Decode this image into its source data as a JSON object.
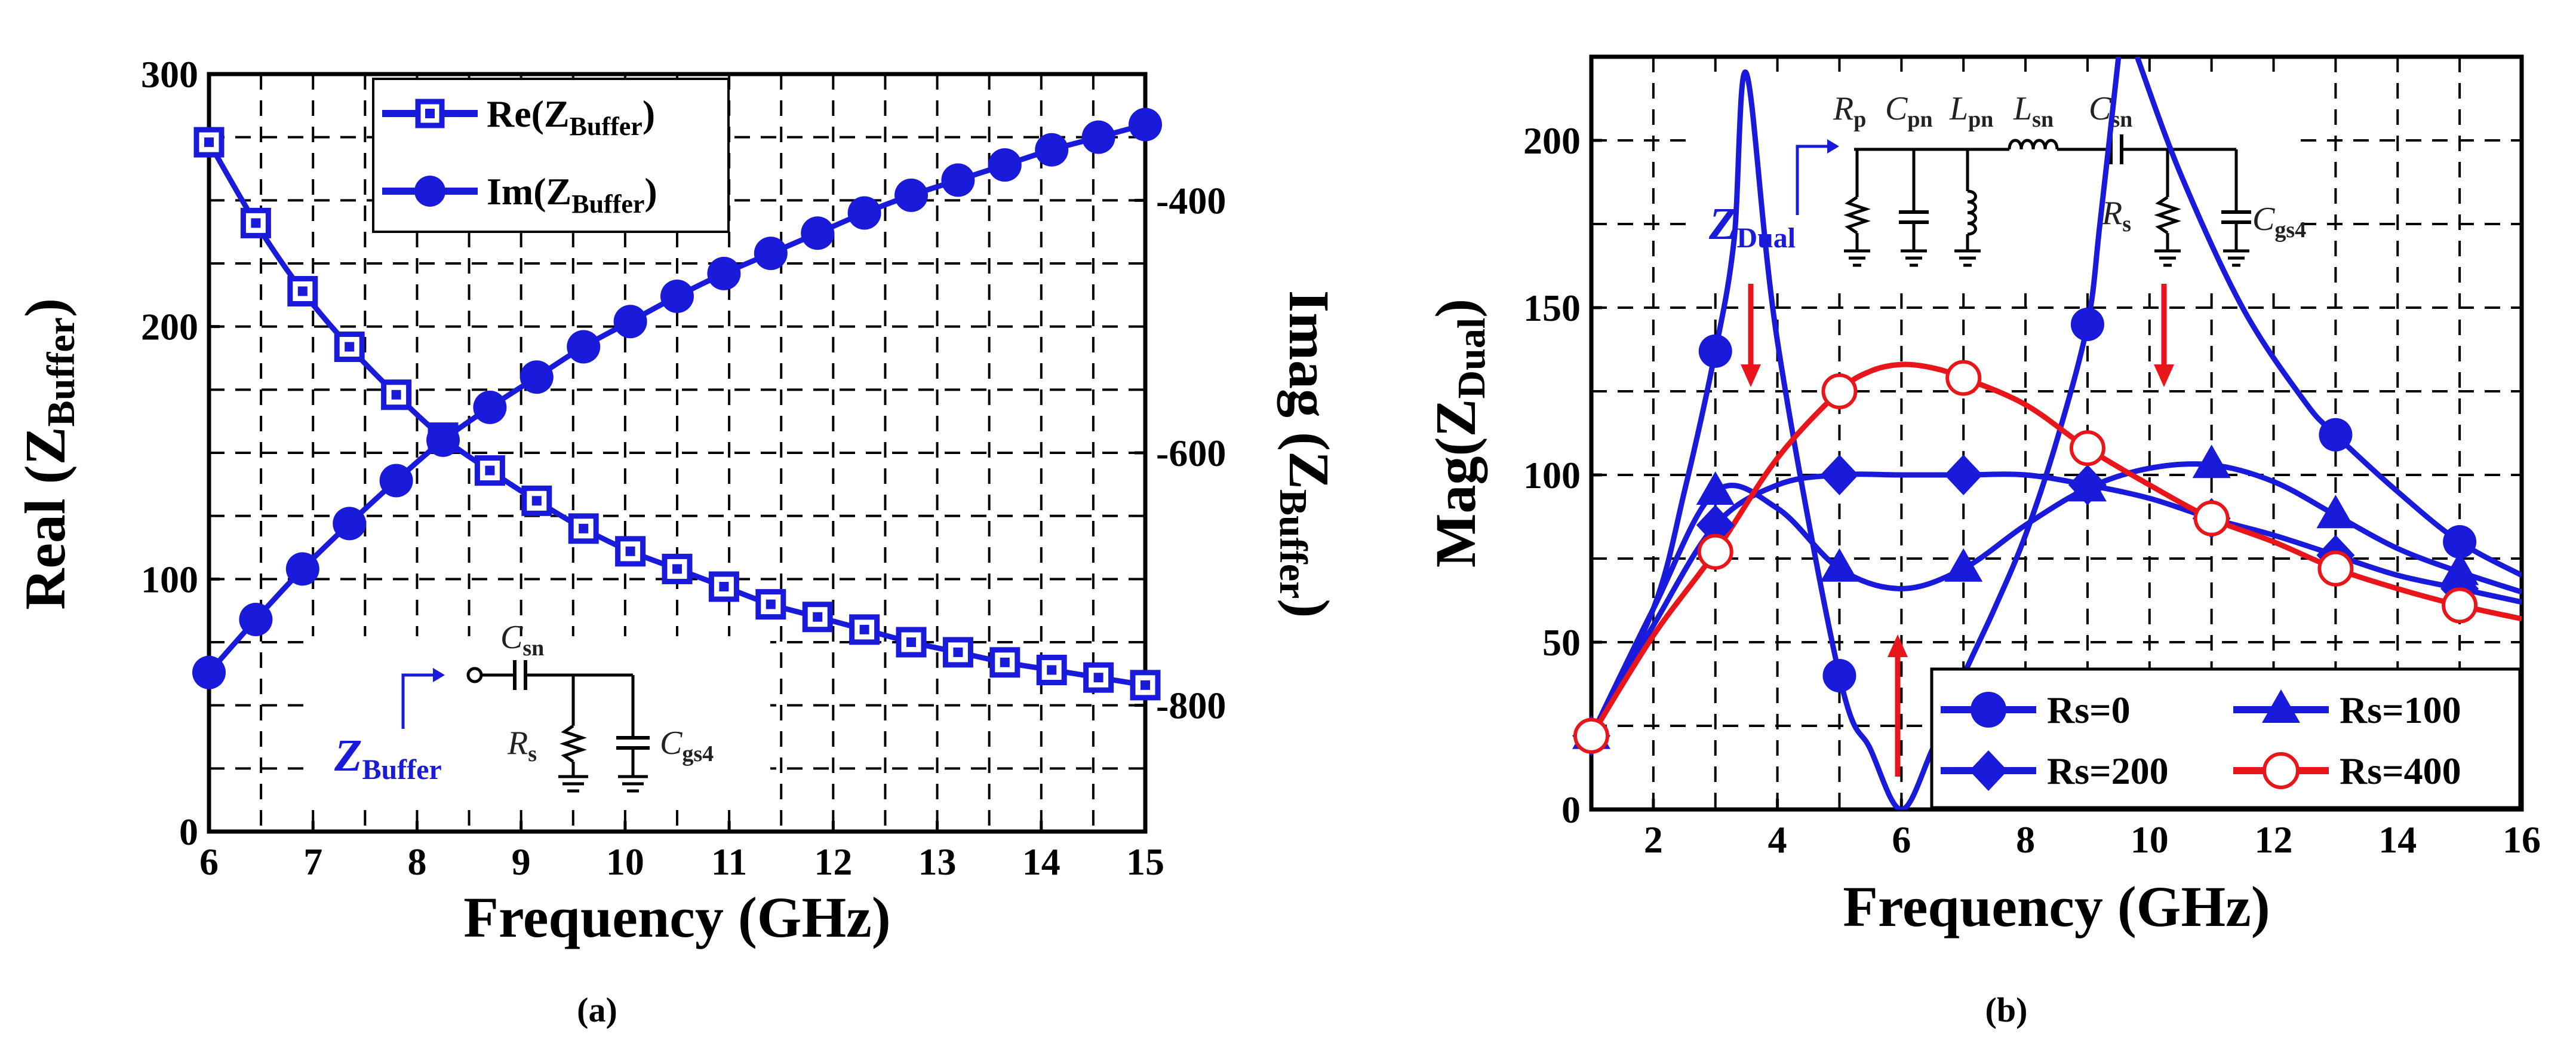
{
  "colors": {
    "blue": "#1a1adb",
    "red": "#e8151b",
    "grid": "#000000"
  },
  "chart_data": [
    {
      "type": "line",
      "panel": "(a)",
      "xlabel": "Frequency (GHz)",
      "ylabel_left": "Real (Z",
      "ylabel_left_sub": "Buffer",
      "ylabel_left_tail": ")",
      "ylabel_right": "Imag (Z",
      "ylabel_right_sub": "Buffer",
      "ylabel_right_tail": ")",
      "xlim": [
        6,
        15
      ],
      "ylim_left": [
        0,
        300
      ],
      "ylim_right": [
        -900,
        -300
      ],
      "xticks": [
        "6",
        "7",
        "8",
        "9",
        "10",
        "11",
        "12",
        "13",
        "14",
        "15"
      ],
      "yticks_left": [
        "0",
        "100",
        "200",
        "300"
      ],
      "yticks_right": [
        "-400",
        "-600",
        "-800"
      ],
      "legend": [
        {
          "name": "Re(Z",
          "sub": "Buffer",
          "tail": ")"
        },
        {
          "name": "Im(Z",
          "sub": "Buffer",
          "tail": ")"
        }
      ],
      "series": [
        {
          "name": "Re(ZBuffer)",
          "axis": "left",
          "marker": "square",
          "x": [
            6,
            6.45,
            6.9,
            7.35,
            7.8,
            8.25,
            8.7,
            9.15,
            9.6,
            10.05,
            10.5,
            10.95,
            11.4,
            11.85,
            12.3,
            12.75,
            13.2,
            13.65,
            14.1,
            14.55,
            15
          ],
          "values": [
            273,
            241,
            214,
            192,
            173,
            156,
            143,
            131,
            120,
            111,
            104,
            97,
            90,
            85,
            80,
            75,
            71,
            67,
            64,
            61,
            58
          ]
        },
        {
          "name": "Im(ZBuffer)",
          "axis": "left",
          "marker": "circle",
          "x": [
            6,
            6.45,
            6.9,
            7.35,
            7.8,
            8.25,
            8.7,
            9.15,
            9.6,
            10.05,
            10.5,
            10.95,
            11.4,
            11.85,
            12.3,
            12.75,
            13.2,
            13.65,
            14.1,
            14.55,
            15
          ],
          "values": [
            63,
            84,
            104,
            122,
            139,
            155,
            168,
            180,
            192,
            202,
            212,
            221,
            229,
            237,
            245,
            252,
            258,
            264,
            270,
            275,
            280
          ]
        }
      ],
      "inset": {
        "label": "Z",
        "label_sub": "Buffer",
        "Csn": "C",
        "Csn_sub": "sn",
        "Rs": "R",
        "Rs_sub": "s",
        "Cgs4": "C",
        "Cgs4_sub": "gs4"
      }
    },
    {
      "type": "line",
      "panel": "(b)",
      "xlabel": "Frequency (GHz)",
      "ylabel": "Mag(Z",
      "ylabel_sub": "Dual",
      "ylabel_tail": ")",
      "xlim": [
        1,
        16
      ],
      "ylim": [
        0,
        225
      ],
      "xticks": [
        "2",
        "4",
        "6",
        "8",
        "10",
        "12",
        "14",
        "16"
      ],
      "yticks": [
        "0",
        "50",
        "100",
        "150",
        "200"
      ],
      "legend": [
        "Rs=0",
        "Rs=100",
        "Rs=200",
        "Rs=400"
      ],
      "series": [
        {
          "name": "Rs=0",
          "marker": "circle",
          "color": "#1a1adb",
          "x": [
            1,
            2,
            2.5,
            3,
            3.3,
            3.5,
            4,
            5,
            5.5,
            6,
            6.5,
            7,
            7.5,
            8,
            8.5,
            9,
            9.2,
            9.5
          ],
          "values": [
            22,
            60,
            95,
            137,
            170,
            220,
            140,
            40,
            18,
            0,
            18,
            40,
            60,
            82,
            110,
            145,
            175,
            225
          ],
          "x2": [
            9.8,
            10.5,
            11.5,
            12.5,
            13,
            14,
            15,
            16
          ],
          "values2": [
            225,
            190,
            150,
            122,
            112,
            95,
            80,
            70
          ],
          "markers_x": [
            1,
            3,
            5,
            9,
            13,
            15
          ],
          "markers_y": [
            22,
            137,
            40,
            145,
            112,
            80
          ]
        },
        {
          "name": "Rs=100",
          "marker": "triangle",
          "color": "#1a1adb",
          "x": [
            1,
            2,
            3,
            4,
            5,
            6,
            7,
            8,
            9,
            10,
            11,
            12,
            13,
            14,
            15,
            16
          ],
          "values": [
            22,
            60,
            95,
            90,
            72,
            66,
            72,
            85,
            96,
            102,
            103,
            98,
            88,
            78,
            71,
            65
          ],
          "markers_x": [
            1,
            3,
            5,
            7,
            9,
            11,
            13,
            15
          ],
          "markers_y": [
            22,
            95,
            72,
            72,
            96,
            103,
            88,
            71
          ]
        },
        {
          "name": "Rs=200",
          "marker": "diamond",
          "color": "#1a1adb",
          "x": [
            1,
            2,
            3,
            4,
            5,
            6,
            7,
            8,
            9,
            10,
            11,
            12,
            13,
            14,
            15,
            16
          ],
          "values": [
            22,
            55,
            85,
            97,
            100,
            100,
            100,
            100,
            97,
            93,
            87,
            82,
            76,
            70,
            66,
            62
          ],
          "markers_x": [
            1,
            3,
            5,
            7,
            9,
            11,
            13,
            15
          ],
          "markers_y": [
            22,
            85,
            100,
            100,
            97,
            87,
            76,
            66
          ]
        },
        {
          "name": "Rs=400",
          "marker": "open-circle",
          "color": "#e8151b",
          "x": [
            1,
            2,
            3,
            4,
            5,
            5.5,
            6,
            6.5,
            7,
            8,
            9,
            10,
            11,
            12,
            13,
            14,
            15,
            16
          ],
          "values": [
            22,
            52,
            77,
            105,
            125,
            131,
            133,
            132,
            129,
            121,
            108,
            97,
            87,
            80,
            72,
            66,
            61,
            57
          ],
          "markers_x": [
            1,
            3,
            5,
            7,
            9,
            11,
            13,
            15
          ],
          "markers_y": [
            22,
            77,
            125,
            129,
            108,
            87,
            72,
            61
          ]
        }
      ],
      "inset": {
        "label": "Z",
        "label_sub": "Dual",
        "Rp": "R",
        "Rp_sub": "p",
        "Cpn": "C",
        "Cpn_sub": "pn",
        "Lpn": "L",
        "Lpn_sub": "pn",
        "Lsn": "L",
        "Lsn_sub": "sn",
        "Csn": "C",
        "Csn_sub": "sn",
        "Rs": "R",
        "Rs_sub": "s",
        "Cgs4": "C",
        "Cgs4_sub": "gs4"
      }
    }
  ]
}
